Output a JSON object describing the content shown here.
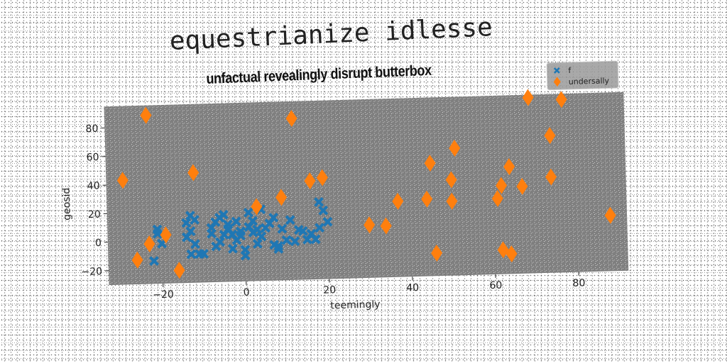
{
  "suptitle": "equestrianize idlesse",
  "chart_data": {
    "type": "scatter",
    "title": "unfactual revealingly disrupt butterbox",
    "xlabel": "teemingly",
    "ylabel": "geosid",
    "xlim": [
      -33,
      92
    ],
    "ylim": [
      -30,
      95
    ],
    "xticks": [
      -20,
      0,
      20,
      40,
      60,
      80
    ],
    "yticks": [
      -20,
      0,
      20,
      40,
      60,
      80
    ],
    "grid": false,
    "legend_position": "right",
    "background": "#7f7f7f",
    "series": [
      {
        "name": "f",
        "marker": "x",
        "color": "#1f77b4",
        "points": [
          [
            -22,
            -14
          ],
          [
            -21,
            5
          ],
          [
            -20,
            -2
          ],
          [
            -21,
            8
          ],
          [
            -13,
            17
          ],
          [
            -14,
            12
          ],
          [
            -12,
            14
          ],
          [
            -13,
            6
          ],
          [
            -14,
            2
          ],
          [
            -12,
            -3
          ],
          [
            -13,
            -10
          ],
          [
            -11,
            -10
          ],
          [
            -10,
            -10
          ],
          [
            -8,
            4
          ],
          [
            -8,
            8
          ],
          [
            -7,
            12
          ],
          [
            -6,
            15
          ],
          [
            -7,
            -5
          ],
          [
            -6,
            -2
          ],
          [
            -5,
            3
          ],
          [
            -5,
            17
          ],
          [
            -4,
            10
          ],
          [
            -4,
            7
          ],
          [
            -3,
            3
          ],
          [
            -3,
            -7
          ],
          [
            -2,
            -1
          ],
          [
            -1,
            5
          ],
          [
            -1,
            2
          ],
          [
            0,
            -8
          ],
          [
            0,
            -12
          ],
          [
            1,
            8
          ],
          [
            1,
            18
          ],
          [
            2,
            12
          ],
          [
            2,
            4
          ],
          [
            3,
            6
          ],
          [
            3,
            -4
          ],
          [
            4,
            1
          ],
          [
            5,
            7
          ],
          [
            6,
            10
          ],
          [
            7,
            14
          ],
          [
            7,
            -5
          ],
          [
            8,
            -8
          ],
          [
            9,
            6
          ],
          [
            10,
            -2
          ],
          [
            11,
            12
          ],
          [
            12,
            -3
          ],
          [
            13,
            5
          ],
          [
            14,
            4
          ],
          [
            15,
            -2
          ],
          [
            16,
            2
          ],
          [
            17,
            -2
          ],
          [
            18,
            6
          ],
          [
            18,
            24
          ],
          [
            19,
            18
          ],
          [
            20,
            10
          ],
          [
            -2,
            12
          ],
          [
            4,
            20
          ],
          [
            8,
            -6
          ]
        ]
      },
      {
        "name": "undersally",
        "marker": "d",
        "color": "#ff7f0e",
        "points": [
          [
            -29,
            43
          ],
          [
            -23,
            88
          ],
          [
            -26,
            -13
          ],
          [
            -23,
            -2
          ],
          [
            -19,
            4
          ],
          [
            -16,
            -21
          ],
          [
            -12,
            47
          ],
          [
            3,
            22
          ],
          [
            9,
            28
          ],
          [
            12,
            83
          ],
          [
            16,
            39
          ],
          [
            19,
            41
          ],
          [
            30,
            7
          ],
          [
            34,
            6
          ],
          [
            37,
            23
          ],
          [
            45,
            49
          ],
          [
            44,
            24
          ],
          [
            46,
            -14
          ],
          [
            50,
            37
          ],
          [
            50,
            22
          ],
          [
            51,
            59
          ],
          [
            61,
            23
          ],
          [
            62,
            32
          ],
          [
            62,
            -13
          ],
          [
            64,
            45
          ],
          [
            64,
            -16
          ],
          [
            67,
            31
          ],
          [
            69,
            93
          ],
          [
            74,
            37
          ],
          [
            74,
            66
          ],
          [
            77,
            91
          ],
          [
            88,
            9
          ]
        ]
      }
    ]
  }
}
